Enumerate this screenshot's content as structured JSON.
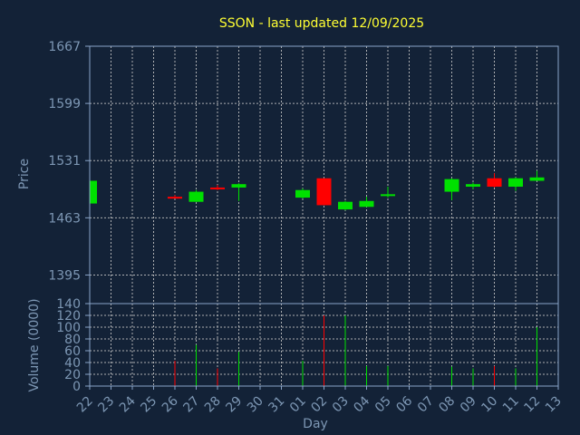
{
  "chart_data": {
    "type": "candlestick",
    "title": "SSON - last updated 12/09/2025",
    "xlabel": "Day",
    "colors": {
      "background": "#132237",
      "up": "#00e000",
      "down": "#ff0000",
      "title": "#ffff33",
      "axis_text": "#7d97b4",
      "grid": "#c8c8c8"
    },
    "days": [
      "22",
      "23",
      "24",
      "25",
      "26",
      "27",
      "28",
      "29",
      "30",
      "31",
      "01",
      "02",
      "03",
      "04",
      "05",
      "06",
      "07",
      "08",
      "09",
      "10",
      "11",
      "12",
      "13"
    ],
    "price": {
      "ylabel": "Price",
      "ylim": [
        1361,
        1667
      ],
      "ticks": [
        1395,
        1463,
        1531,
        1599,
        1667
      ],
      "candles": [
        {
          "day": "22",
          "open": 1480,
          "high": 1507,
          "low": 1480,
          "close": 1507
        },
        {
          "day": "26",
          "open": 1488,
          "high": 1490,
          "low": 1486,
          "close": 1486
        },
        {
          "day": "27",
          "open": 1482,
          "high": 1496,
          "low": 1482,
          "close": 1494
        },
        {
          "day": "28",
          "open": 1499,
          "high": 1502,
          "low": 1496,
          "close": 1498
        },
        {
          "day": "29",
          "open": 1499,
          "high": 1504,
          "low": 1483,
          "close": 1503
        },
        {
          "day": "01",
          "open": 1487,
          "high": 1498,
          "low": 1486,
          "close": 1496
        },
        {
          "day": "02",
          "open": 1510,
          "high": 1510,
          "low": 1478,
          "close": 1478
        },
        {
          "day": "03",
          "open": 1473,
          "high": 1483,
          "low": 1472,
          "close": 1482
        },
        {
          "day": "04",
          "open": 1476,
          "high": 1488,
          "low": 1476,
          "close": 1483
        },
        {
          "day": "05",
          "open": 1490,
          "high": 1500,
          "low": 1487,
          "close": 1491
        },
        {
          "day": "08",
          "open": 1494,
          "high": 1510,
          "low": 1484,
          "close": 1509
        },
        {
          "day": "09",
          "open": 1500,
          "high": 1505,
          "low": 1497,
          "close": 1503
        },
        {
          "day": "10",
          "open": 1510,
          "high": 1516,
          "low": 1499,
          "close": 1500
        },
        {
          "day": "11",
          "open": 1500,
          "high": 1511,
          "low": 1495,
          "close": 1510
        },
        {
          "day": "12",
          "open": 1507,
          "high": 1519,
          "low": 1507,
          "close": 1511
        }
      ]
    },
    "volume": {
      "ylabel": "Volume (0000)",
      "ylim": [
        0,
        140
      ],
      "ticks": [
        0,
        20,
        40,
        60,
        80,
        100,
        120,
        140
      ],
      "bars": [
        {
          "day": "26",
          "value": 43,
          "dir": "down"
        },
        {
          "day": "27",
          "value": 70,
          "dir": "up"
        },
        {
          "day": "28",
          "value": 30,
          "dir": "down"
        },
        {
          "day": "29",
          "value": 58,
          "dir": "up"
        },
        {
          "day": "01",
          "value": 43,
          "dir": "up"
        },
        {
          "day": "02",
          "value": 120,
          "dir": "down"
        },
        {
          "day": "03",
          "value": 120,
          "dir": "up"
        },
        {
          "day": "04",
          "value": 34,
          "dir": "up"
        },
        {
          "day": "05",
          "value": 34,
          "dir": "up"
        },
        {
          "day": "08",
          "value": 33,
          "dir": "up"
        },
        {
          "day": "09",
          "value": 30,
          "dir": "up"
        },
        {
          "day": "10",
          "value": 34,
          "dir": "down"
        },
        {
          "day": "11",
          "value": 30,
          "dir": "up"
        },
        {
          "day": "12",
          "value": 100,
          "dir": "up"
        }
      ]
    }
  }
}
